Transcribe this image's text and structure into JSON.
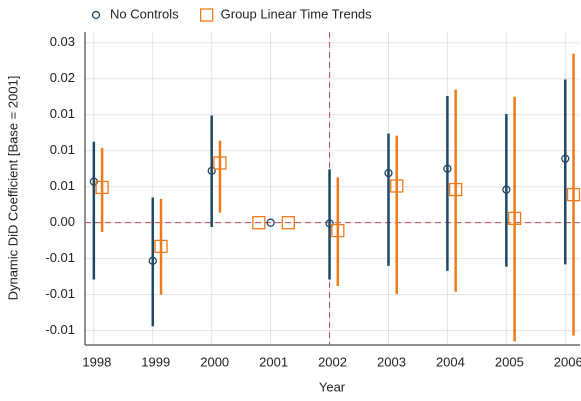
{
  "chart_data": {
    "type": "errorbar",
    "xlabel": "Year",
    "ylabel": "Dynamic DiD Coefficient [Base = 2001]",
    "xlim": [
      1997.85,
      2006.25
    ],
    "ylim": [
      -0.017,
      0.0265
    ],
    "xticks": [
      1998,
      1999,
      2000,
      2001,
      2002,
      2003,
      2004,
      2005,
      2006
    ],
    "yticks": [
      {
        "value": 0.025,
        "label": "0.03"
      },
      {
        "value": 0.02,
        "label": "0.02"
      },
      {
        "value": 0.015,
        "label": "0.01"
      },
      {
        "value": 0.01,
        "label": "0.01"
      },
      {
        "value": 0.005,
        "label": "0.01"
      },
      {
        "value": 0,
        "label": "0.00"
      },
      {
        "value": -0.005,
        "label": "-0.01"
      },
      {
        "value": -0.01,
        "label": "-0.01"
      },
      {
        "value": -0.015,
        "label": "-0.01"
      }
    ],
    "grid": true,
    "hline": 0,
    "vline": 2002,
    "refcolor": "#c0505a",
    "series": [
      {
        "name": "No Controls",
        "color": "#1f4766",
        "marker": "circle",
        "x": [
          1998,
          1999,
          2000,
          2001,
          2002,
          2003,
          2004,
          2005,
          2006
        ],
        "values": [
          0.0057,
          -0.0053,
          0.0072,
          0,
          -0.0001,
          0.0069,
          0.0075,
          0.0046,
          0.0089
        ],
        "lower": [
          -0.0079,
          -0.0144,
          -0.0006,
          null,
          -0.0079,
          -0.006,
          -0.0067,
          -0.0061,
          -0.0058
        ],
        "upper": [
          0.01125,
          0.0035,
          0.0149,
          null,
          0.0074,
          0.0124,
          0.0176,
          0.0151,
          0.0199
        ]
      },
      {
        "name": "Group Linear Time Trends",
        "color": "#ef7a1a",
        "marker": "square",
        "x": [
          1998.14,
          1999.14,
          2000.14,
          2000.8,
          2001.3,
          2002.14,
          2003.14,
          2004.14,
          2005.14,
          2006.14
        ],
        "values": [
          0.0049,
          -0.0033,
          0.0083,
          0,
          0,
          -0.0011,
          0.0051,
          0.0046,
          0.0006,
          0.0039
        ],
        "lower": [
          -0.0013,
          -0.01,
          0.0014,
          null,
          null,
          -0.0088,
          -0.0099,
          -0.0096,
          -0.0165,
          -0.0157
        ],
        "upper": [
          0.0104,
          0.0033,
          0.0114,
          null,
          null,
          0.0063,
          0.0121,
          0.0185,
          0.0175,
          0.0235
        ]
      }
    ]
  }
}
